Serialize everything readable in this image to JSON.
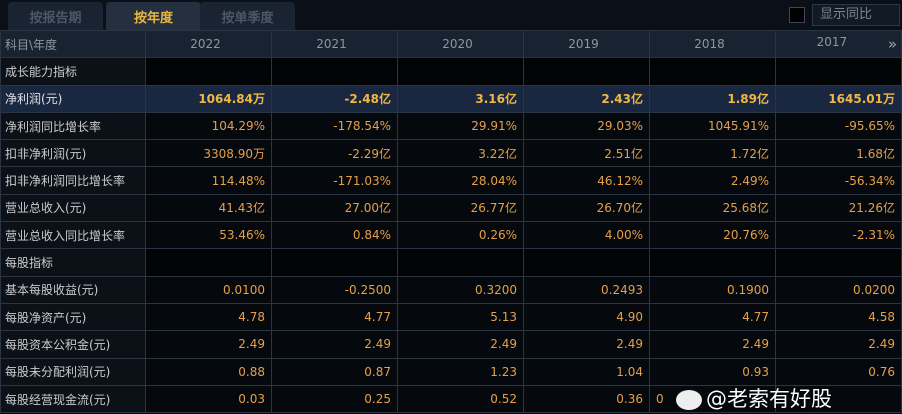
{
  "tabs": [
    "按报告期",
    "按年度",
    "按单季度"
  ],
  "active_tab": 1,
  "show_yoy_label": "显示同比",
  "header": {
    "label": "科目\\年度",
    "years": [
      "2022",
      "2021",
      "2020",
      "2019",
      "2018",
      "2017"
    ],
    "more_icon": "double-chevron-right-icon"
  },
  "rows": [
    {
      "label": "成长能力指标",
      "type": "section",
      "values": [
        "",
        "",
        "",
        "",
        "",
        ""
      ]
    },
    {
      "label": "净利润(元)",
      "type": "highlight",
      "values": [
        "1064.84万",
        "-2.48亿",
        "3.16亿",
        "2.43亿",
        "1.89亿",
        "1645.01万"
      ]
    },
    {
      "label": "净利润同比增长率",
      "values": [
        "104.29%",
        "-178.54%",
        "29.91%",
        "29.03%",
        "1045.91%",
        "-95.65%"
      ]
    },
    {
      "label": "扣非净利润(元)",
      "values": [
        "3308.90万",
        "-2.29亿",
        "3.22亿",
        "2.51亿",
        "1.72亿",
        "1.68亿"
      ]
    },
    {
      "label": "扣非净利润同比增长率",
      "values": [
        "114.48%",
        "-171.03%",
        "28.04%",
        "46.12%",
        "2.49%",
        "-56.34%"
      ]
    },
    {
      "label": "营业总收入(元)",
      "values": [
        "41.43亿",
        "27.00亿",
        "26.77亿",
        "26.70亿",
        "25.68亿",
        "21.26亿"
      ]
    },
    {
      "label": "营业总收入同比增长率",
      "values": [
        "53.46%",
        "0.84%",
        "0.26%",
        "4.00%",
        "20.76%",
        "-2.31%"
      ]
    },
    {
      "label": "每股指标",
      "type": "section",
      "values": [
        "",
        "",
        "",
        "",
        "",
        ""
      ]
    },
    {
      "label": "基本每股收益(元)",
      "values": [
        "0.0100",
        "-0.2500",
        "0.3200",
        "0.2493",
        "0.1900",
        "0.0200"
      ]
    },
    {
      "label": "每股净资产(元)",
      "values": [
        "4.78",
        "4.77",
        "5.13",
        "4.90",
        "4.77",
        "4.58"
      ]
    },
    {
      "label": "每股资本公积金(元)",
      "values": [
        "2.49",
        "2.49",
        "2.49",
        "2.49",
        "2.49",
        "2.49"
      ]
    },
    {
      "label": "每股未分配利润(元)",
      "values": [
        "0.88",
        "0.87",
        "1.23",
        "1.04",
        "0.93",
        "0.76"
      ]
    },
    {
      "label": "每股经营现金流(元)",
      "values": [
        "0.03",
        "0.25",
        "0.52",
        "0.36",
        "0",
        ""
      ]
    }
  ],
  "watermark": "@老索有好股"
}
